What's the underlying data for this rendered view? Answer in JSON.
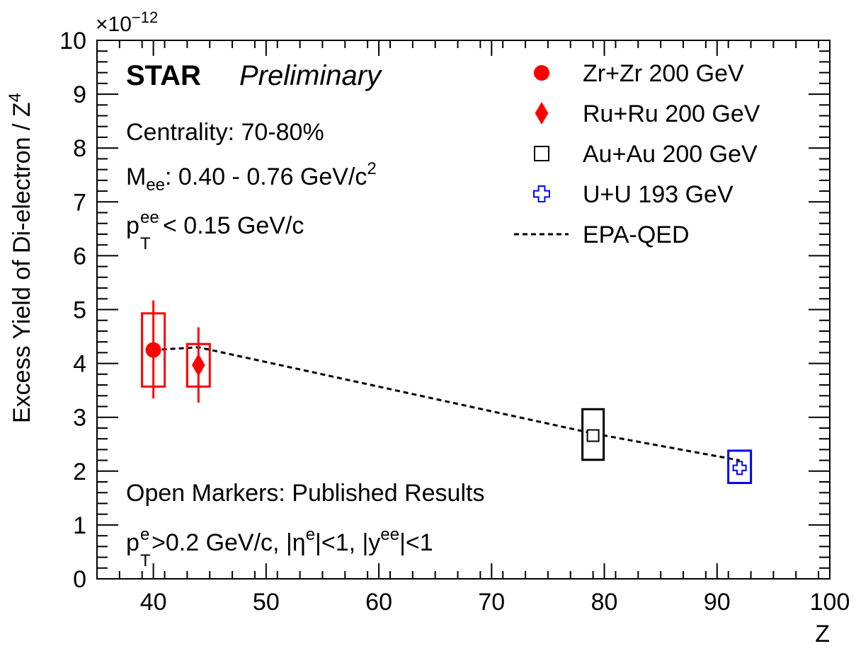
{
  "chart_data": {
    "type": "scatter",
    "xlabel": "Z",
    "ylabel": "Excess Yield of Di-electron / Z",
    "ylabel_sup": "4",
    "y_multiplier": "×10",
    "y_multiplier_exp": "−12",
    "xlim": [
      35,
      100
    ],
    "ylim": [
      0,
      10
    ],
    "x_ticks": [
      40,
      50,
      60,
      70,
      80,
      90,
      100
    ],
    "y_ticks": [
      0,
      1,
      2,
      3,
      4,
      5,
      6,
      7,
      8,
      9,
      10
    ],
    "grid": false,
    "legend_placement": "top-right",
    "series": [
      {
        "name": "Zr+Zr 200 GeV",
        "marker": "filled-circle",
        "color": "#ff0000",
        "x": 40,
        "y": 4.25,
        "stat_err": [
          3.35,
          5.17
        ],
        "sys_box": [
          3.57,
          4.93
        ]
      },
      {
        "name": "Ru+Ru 200 GeV",
        "marker": "filled-diamond",
        "color": "#ff0000",
        "x": 44,
        "y": 3.97,
        "stat_err": [
          3.27,
          4.67
        ],
        "sys_box": [
          3.57,
          4.36
        ]
      },
      {
        "name": "Au+Au 200 GeV",
        "marker": "open-square",
        "color": "#000000",
        "x": 79,
        "y": 2.66,
        "sys_box": [
          2.21,
          3.15
        ]
      },
      {
        "name": "U+U 193 GeV",
        "marker": "open-cross",
        "color": "#0000ff",
        "x": 92,
        "y": 2.06,
        "sys_box": [
          1.78,
          2.38
        ]
      }
    ],
    "model": {
      "name": "EPA-QED",
      "style": "dashed",
      "color": "#000000",
      "x": [
        40,
        44,
        79,
        92
      ],
      "y": [
        4.25,
        4.3,
        2.7,
        2.2
      ]
    }
  },
  "annotations": {
    "experiment": "STAR",
    "status": "Preliminary",
    "centrality": "Centrality: 70-80%",
    "mass_main": "M",
    "mass_sub": "ee",
    "mass_range": ": 0.40 - 0.76 GeV/c",
    "mass_sup": "2",
    "pt_main": "p",
    "pt_sup": "ee",
    "pt_sub": "T",
    "pt_cut": " < 0.15 GeV/c",
    "open_markers": "Open Markers: Published Results",
    "cuts_p": "p",
    "cuts_pt_sup": "e",
    "cuts_pt_sub": "T",
    "cuts_pt_text": ">0.2 GeV/c, |η",
    "cuts_eta_sup": "e",
    "cuts_eta_text": "|<1, |y",
    "cuts_y_sup": "ee",
    "cuts_y_text": "|<1"
  }
}
